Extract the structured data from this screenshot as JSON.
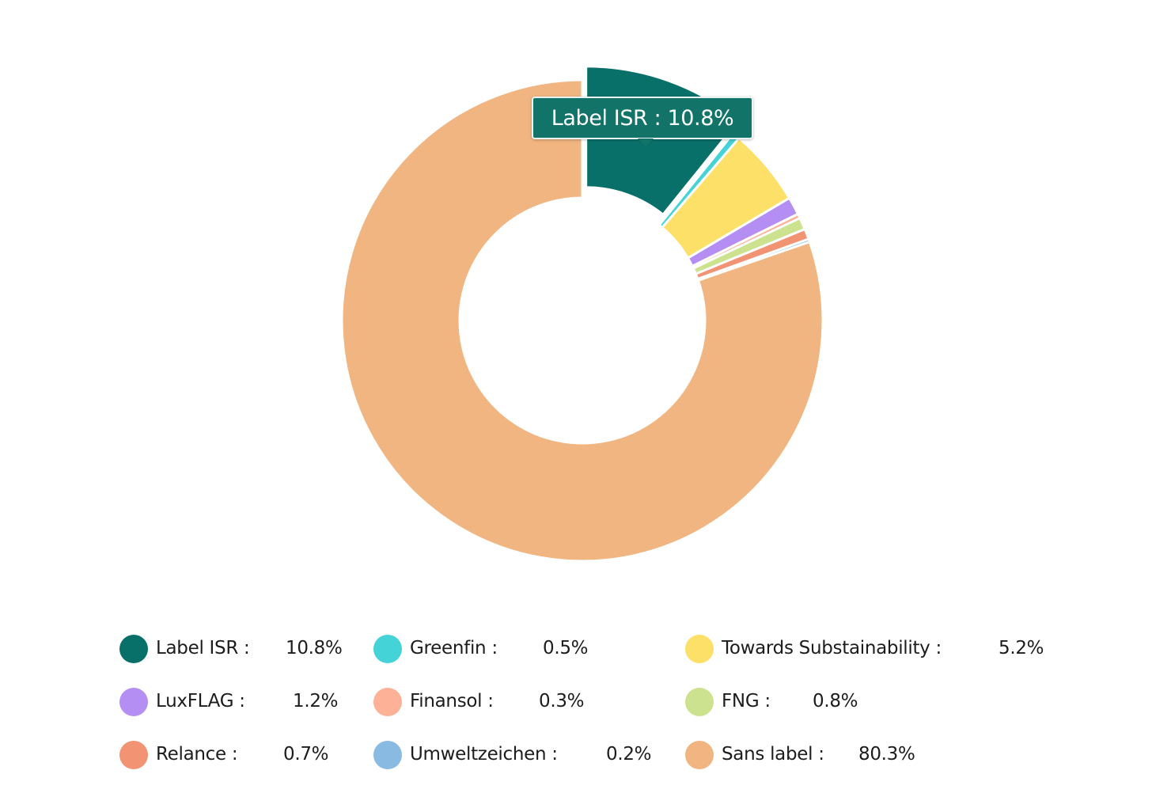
{
  "tooltip": {
    "label": "Label ISR",
    "value": "10.8%",
    "text": "Label ISR : 10.8%"
  },
  "chart_data": {
    "type": "pie",
    "variant": "donut",
    "title": "",
    "highlighted": "Label ISR",
    "slices": [
      {
        "name": "Label ISR",
        "value": 10.8,
        "display": "10.8%",
        "color": "#097069"
      },
      {
        "name": "Greenfin",
        "value": 0.5,
        "display": "0.5%",
        "color": "#44d3d6"
      },
      {
        "name": "Towards Substainability",
        "value": 5.2,
        "display": "5.2%",
        "color": "#fde068"
      },
      {
        "name": "LuxFLAG",
        "value": 1.2,
        "display": "1.2%",
        "color": "#b48ef2"
      },
      {
        "name": "Finansol",
        "value": 0.3,
        "display": "0.3%",
        "color": "#fdb196"
      },
      {
        "name": "FNG",
        "value": 0.8,
        "display": "0.8%",
        "color": "#cde28f"
      },
      {
        "name": "Relance",
        "value": 0.7,
        "display": "0.7%",
        "color": "#f29373"
      },
      {
        "name": "Umweltzeichen",
        "value": 0.2,
        "display": "0.2%",
        "color": "#89bbe2"
      },
      {
        "name": "Sans label",
        "value": 80.3,
        "display": "80.3%",
        "color": "#f0b581"
      }
    ],
    "legend": [
      {
        "label": "Label ISR :",
        "value": "10.8%"
      },
      {
        "label": "Greenfin :",
        "value": "0.5%"
      },
      {
        "label": "Towards Substainability :",
        "value": "5.2%"
      },
      {
        "label": "LuxFLAG :",
        "value": "1.2%"
      },
      {
        "label": "Finansol :",
        "value": "0.3%"
      },
      {
        "label": "FNG :",
        "value": "0.8%"
      },
      {
        "label": "Relance :",
        "value": "0.7%"
      },
      {
        "label": "Umweltzeichen :",
        "value": "0.2%"
      },
      {
        "label": "Sans label :",
        "value": "80.3%"
      }
    ],
    "legend_position": "bottom"
  }
}
